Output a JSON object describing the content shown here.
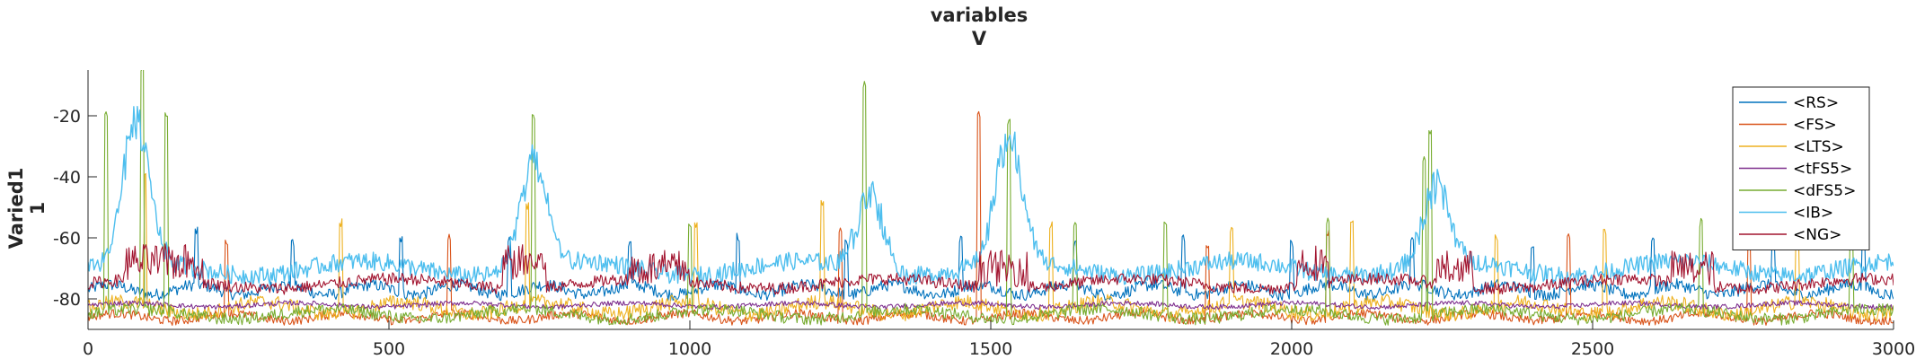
{
  "chart_data": {
    "type": "line",
    "title": [
      "variables",
      "V"
    ],
    "ylabel": [
      "Varied1",
      "1"
    ],
    "xlabel": "",
    "xlim": [
      0,
      3000
    ],
    "ylim": [
      -90,
      -5
    ],
    "xticks": [
      0,
      500,
      1000,
      1500,
      2000,
      2500,
      3000
    ],
    "xtick_labels": [
      "0",
      "500",
      "1000",
      "1500",
      "2000",
      "2500",
      "3000"
    ],
    "yticks": [
      -80,
      -60,
      -40,
      -20
    ],
    "ytick_labels": [
      "-80",
      "-60",
      "-40",
      "-20"
    ],
    "grid": false,
    "legend_position": "top-right",
    "series": [
      {
        "name": "<RS>",
        "color": "#0072bd",
        "baseline": -77,
        "noise": 2,
        "spikes": [
          [
            180,
            -58
          ],
          [
            340,
            -62
          ],
          [
            520,
            -60
          ],
          [
            700,
            -60
          ],
          [
            900,
            -62
          ],
          [
            1080,
            -60
          ],
          [
            1260,
            -62
          ],
          [
            1450,
            -60
          ],
          [
            1640,
            -62
          ],
          [
            1820,
            -60
          ],
          [
            2000,
            -62
          ],
          [
            2200,
            -60
          ],
          [
            2400,
            -62
          ],
          [
            2600,
            -60
          ],
          [
            2800,
            -62
          ],
          [
            2950,
            -60
          ]
        ]
      },
      {
        "name": "<FS>",
        "color": "#d95319",
        "baseline": -86,
        "noise": 1.5,
        "spikes": [
          [
            230,
            -62
          ],
          [
            600,
            -60
          ],
          [
            1250,
            -58
          ],
          [
            1480,
            -20
          ],
          [
            1860,
            -62
          ],
          [
            2060,
            -58
          ],
          [
            2460,
            -60
          ],
          [
            2760,
            -62
          ]
        ]
      },
      {
        "name": "<LTS>",
        "color": "#edb120",
        "baseline": -83,
        "noise": 2.5,
        "spikes": [
          [
            95,
            -40
          ],
          [
            420,
            -55
          ],
          [
            730,
            -50
          ],
          [
            1010,
            -56
          ],
          [
            1220,
            -48
          ],
          [
            1600,
            -56
          ],
          [
            1900,
            -58
          ],
          [
            2100,
            -55
          ],
          [
            2340,
            -60
          ],
          [
            2520,
            -58
          ],
          [
            2840,
            -56
          ]
        ]
      },
      {
        "name": "<tFS5>",
        "color": "#7e2f8e",
        "baseline": -82,
        "noise": 0.8,
        "spikes": []
      },
      {
        "name": "<dFS5>",
        "color": "#77ac30",
        "baseline": -85,
        "noise": 2,
        "spikes": [
          [
            30,
            -20
          ],
          [
            90,
            -5
          ],
          [
            130,
            -20
          ],
          [
            740,
            -20
          ],
          [
            1000,
            -55
          ],
          [
            1290,
            -10
          ],
          [
            1530,
            -22
          ],
          [
            1640,
            -55
          ],
          [
            1790,
            -55
          ],
          [
            2060,
            -55
          ],
          [
            2220,
            -34
          ],
          [
            2230,
            -25
          ],
          [
            2680,
            -55
          ],
          [
            2930,
            -55
          ]
        ]
      },
      {
        "name": "<IB>",
        "color": "#4dbeee",
        "baseline": -70,
        "noise": 3,
        "bursts": [
          [
            80,
            -25
          ],
          [
            740,
            -35
          ],
          [
            1300,
            -45
          ],
          [
            1530,
            -30
          ],
          [
            2240,
            -45
          ]
        ]
      },
      {
        "name": "<NG>",
        "color": "#a2142f",
        "baseline": -75,
        "noise": 2,
        "active": [
          [
            60,
            190,
            -68
          ],
          [
            690,
            760,
            -68
          ],
          [
            900,
            1000,
            -70
          ],
          [
            1480,
            1560,
            -70
          ],
          [
            2010,
            2060,
            -68
          ],
          [
            2240,
            2300,
            -70
          ],
          [
            2630,
            2700,
            -70
          ]
        ]
      }
    ]
  }
}
